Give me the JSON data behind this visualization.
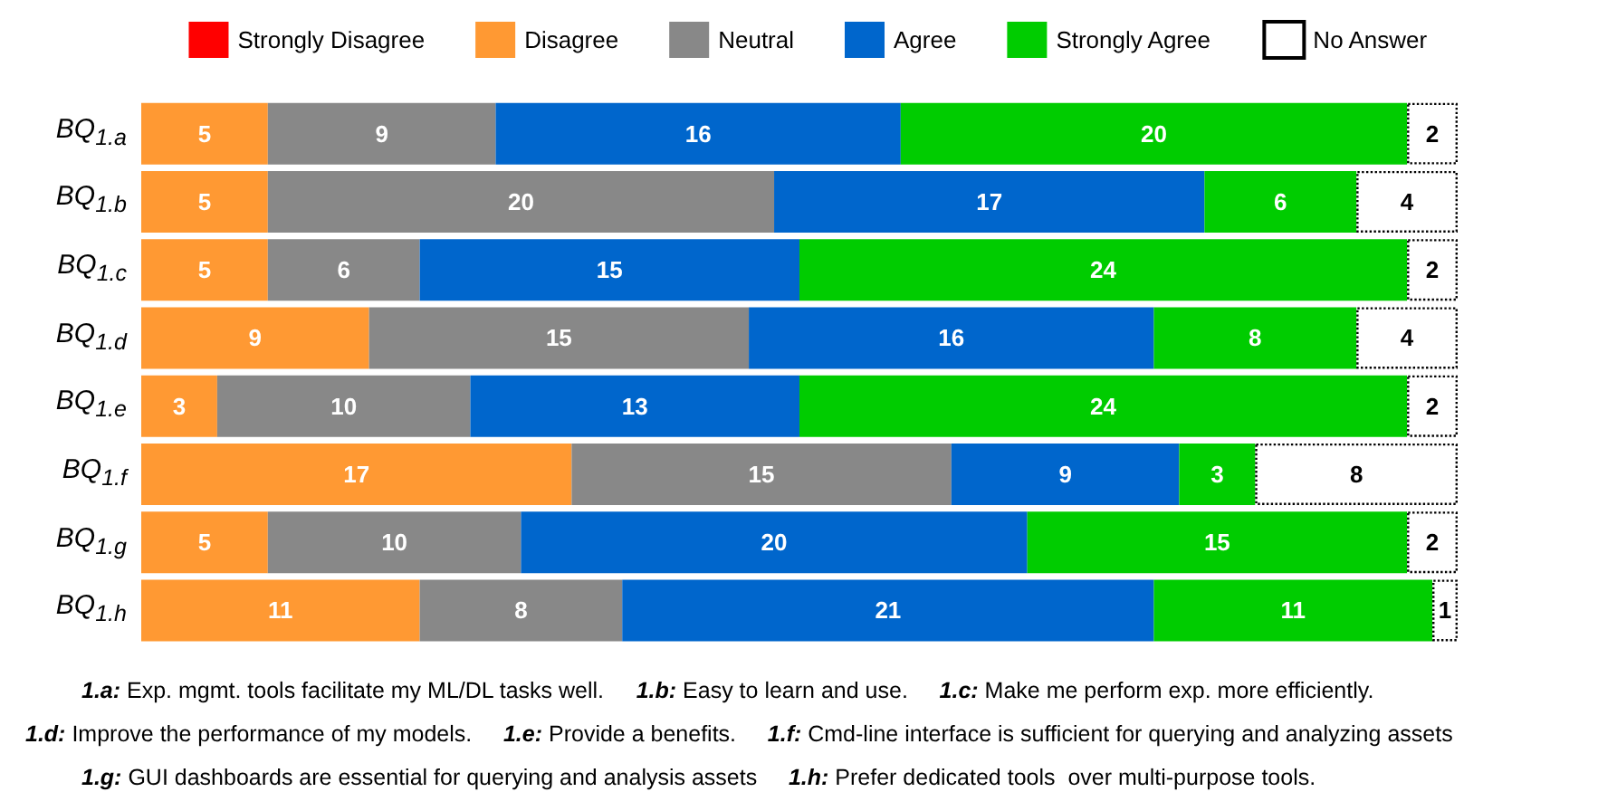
{
  "chart_data": {
    "type": "bar",
    "orientation": "horizontal",
    "stacked": true,
    "legend": "top",
    "grid": false,
    "tick_labels": "y",
    "categories": [
      "BQ$_{1.a}$",
      "BQ$_{1.b}$",
      "BQ$_{1.c}$",
      "BQ$_{1.d}$",
      "BQ$_{1.e}$",
      "BQ$_{1.f}$",
      "BQ$_{1.g}$",
      "BQ$_{1.h}$"
    ],
    "series": [
      {
        "name": "Strongly Disagree",
        "color": "#ff0000",
        "values": [
          0,
          0,
          0,
          0,
          0,
          0,
          0,
          0
        ],
        "value_labels": [
          null,
          null,
          null,
          null,
          null,
          null,
          null,
          null
        ]
      },
      {
        "name": "Disagree",
        "color": "#ff9933",
        "values": [
          5,
          5,
          5,
          9,
          3,
          17,
          5,
          11
        ],
        "value_labels": [
          "5",
          "5",
          "5",
          "9",
          "3",
          "17",
          "5",
          "11"
        ]
      },
      {
        "name": "Neutral",
        "color": "#888888",
        "values": [
          9,
          20,
          6,
          15,
          10,
          15,
          10,
          8
        ],
        "value_labels": [
          "9",
          "20",
          "6",
          "15",
          "10",
          "15",
          "10",
          "8"
        ]
      },
      {
        "name": "Agree",
        "color": "#0066cc",
        "values": [
          16,
          17,
          15,
          16,
          13,
          9,
          20,
          21
        ],
        "value_labels": [
          "16",
          "17",
          "15",
          "16",
          "13",
          "9",
          "20",
          "21"
        ]
      },
      {
        "name": "Strongly Agree",
        "color": "#00cc00",
        "values": [
          20,
          6,
          24,
          8,
          24,
          3,
          15,
          11
        ],
        "value_labels": [
          "20",
          "6",
          "24",
          "8",
          "24",
          "3",
          "15",
          "11"
        ]
      },
      {
        "name": "No Answer",
        "color": "#ffffff",
        "line_style": "dotted",
        "values": [
          2,
          4,
          2,
          4,
          2,
          8,
          2,
          1
        ],
        "value_labels": [
          "2",
          "4",
          "2",
          "4",
          "2",
          "8",
          "2",
          "1"
        ]
      }
    ],
    "annotations": [
      "1.a: Exp. mgmt. tools facilitate my ML/DL tasks well.",
      "1.b: Easy to learn and use.",
      "1.c: Make me perform exp. more efficiently.",
      "1.d: Improve the performance of my models.",
      "1.e: Provide a benefits.",
      "1.f: Cmd-line interface is sufficient for querying and analyzing assets",
      "1.g: GUI dashboards are essential for querying and analysis assets",
      "1.h: Prefer dedicated tools  over multi-purpose tools."
    ]
  }
}
